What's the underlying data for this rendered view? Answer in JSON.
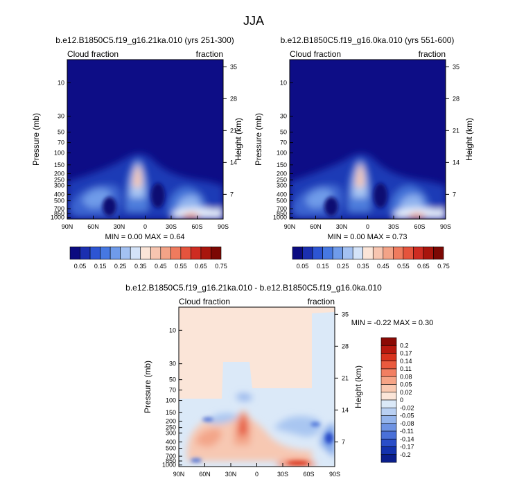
{
  "page_title": "JJA",
  "chart_data": [
    {
      "type": "heatmap",
      "title": "b.e12.B1850C5.f19_g16.21ka.010 (yrs 251-300)",
      "left_label": "Cloud fraction",
      "right_label": "fraction",
      "ylabel": "Pressure (mb)",
      "ylabel_right": "Height (km)",
      "x_ticks": [
        "90N",
        "60N",
        "30N",
        "0",
        "30S",
        "60S",
        "90S"
      ],
      "y_ticks": [
        "10",
        "30",
        "50",
        "70",
        "100",
        "150",
        "200",
        "250",
        "300",
        "400",
        "500",
        "700",
        "850",
        "1000"
      ],
      "y_ticks_right": [
        "35",
        "28",
        "21",
        "14",
        "7"
      ],
      "minmax": "MIN =   0.00   MAX =   0.64",
      "colorbar_labels": [
        "0.05",
        "0.15",
        "0.25",
        "0.35",
        "0.45",
        "0.55",
        "0.65",
        "0.75"
      ],
      "colorbar_colors": [
        "#0b0b80",
        "#1b2fb0",
        "#2d55d3",
        "#4678e2",
        "#6f9bea",
        "#a3c1f2",
        "#d4e3f8",
        "#fbe5d8",
        "#f7c5b0",
        "#f3a387",
        "#ef7b5e",
        "#e5543d",
        "#ce2c22",
        "#a8150d",
        "#7c0804"
      ]
    },
    {
      "type": "heatmap",
      "title": "b.e12.B1850C5.f19_g16.0ka.010 (yrs 551-600)",
      "left_label": "Cloud fraction",
      "right_label": "fraction",
      "ylabel": "Pressure (mb)",
      "ylabel_right": "Height (km)",
      "x_ticks": [
        "90N",
        "60N",
        "30N",
        "0",
        "30S",
        "60S",
        "90S"
      ],
      "y_ticks": [
        "10",
        "30",
        "50",
        "70",
        "100",
        "150",
        "200",
        "250",
        "300",
        "400",
        "500",
        "700",
        "850",
        "1000"
      ],
      "y_ticks_right": [
        "35",
        "28",
        "21",
        "14",
        "7"
      ],
      "minmax": "MIN =   0.00   MAX =   0.73",
      "colorbar_labels": [
        "0.05",
        "0.15",
        "0.25",
        "0.35",
        "0.45",
        "0.55",
        "0.65",
        "0.75"
      ],
      "colorbar_colors": [
        "#0b0b80",
        "#1b2fb0",
        "#2d55d3",
        "#4678e2",
        "#6f9bea",
        "#a3c1f2",
        "#d4e3f8",
        "#fbe5d8",
        "#f7c5b0",
        "#f3a387",
        "#ef7b5e",
        "#e5543d",
        "#ce2c22",
        "#a8150d",
        "#7c0804"
      ]
    },
    {
      "type": "heatmap",
      "title": "b.e12.B1850C5.f19_g16.21ka.010 - b.e12.B1850C5.f19_g16.0ka.010",
      "left_label": "Cloud fraction",
      "right_label": "fraction",
      "ylabel": "Pressure (mb)",
      "ylabel_right": "Height (km)",
      "x_ticks": [
        "90N",
        "60N",
        "30N",
        "0",
        "30S",
        "60S",
        "90S"
      ],
      "y_ticks": [
        "10",
        "30",
        "50",
        "70",
        "100",
        "150",
        "200",
        "250",
        "300",
        "400",
        "500",
        "700",
        "850",
        "1000"
      ],
      "y_ticks_right": [
        "35",
        "28",
        "21",
        "14",
        "7"
      ],
      "minmax": "MIN =  -0.22   MAX =   0.30",
      "colorbar_labels": [
        "0.2",
        "0.17",
        "0.14",
        "0.11",
        "0.08",
        "0.05",
        "0.02",
        "0",
        "-0.02",
        "-0.05",
        "-0.08",
        "-0.11",
        "-0.14",
        "-0.17",
        "-0.2"
      ],
      "colorbar_colors": [
        "#8b0a05",
        "#b7190f",
        "#d8341f",
        "#ea5a3e",
        "#f27f62",
        "#f6a486",
        "#f9c9b1",
        "#fbe5d8",
        "#dbe9f8",
        "#b9d0f3",
        "#94b4ec",
        "#6e93e3",
        "#4a70d8",
        "#2a4ec8",
        "#1332ad",
        "#0a1e8c"
      ]
    }
  ]
}
